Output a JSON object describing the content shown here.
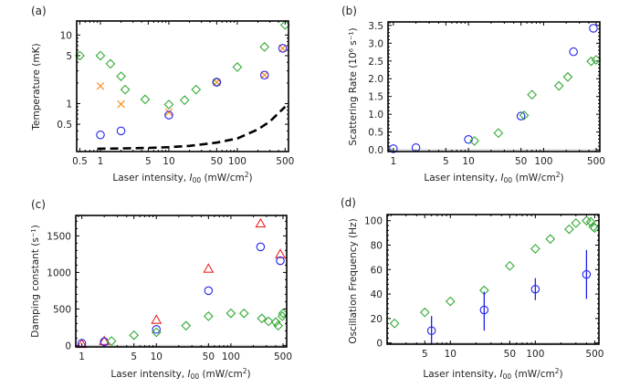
{
  "chart_data": [
    {
      "panel": "(a)",
      "type": "scatter",
      "xscale": "log",
      "yscale": "log",
      "xlabel": "Laser intensity, I00 (mW/cm2)",
      "ylabel": "Temperature (mK)",
      "xlim": [
        0.45,
        560
      ],
      "ylim": [
        0.2,
        16
      ],
      "xticks": [
        0.5,
        1,
        5,
        10,
        50,
        100,
        500
      ],
      "xtick_labels": [
        "0.5",
        "1",
        "5",
        "10",
        "50",
        "100",
        "500"
      ],
      "yticks": [
        0.5,
        1,
        5,
        10
      ],
      "ytick_labels": [
        "0.5",
        "1",
        "5",
        "10"
      ],
      "series": [
        {
          "name": "green diamonds",
          "marker": "diamond",
          "color": "#33aa33",
          "x": [
            0.5,
            1,
            1.4,
            2,
            2.3,
            4.5,
            10,
            17,
            25,
            50,
            100,
            250,
            500
          ],
          "y": [
            5.0,
            5.0,
            3.8,
            2.5,
            1.6,
            1.15,
            0.97,
            1.12,
            1.6,
            2.05,
            3.4,
            6.7,
            14.0
          ]
        },
        {
          "name": "orange crosses",
          "marker": "x",
          "color": "#ff8c1a",
          "x": [
            1,
            2,
            10,
            50,
            250,
            460
          ],
          "y": [
            1.8,
            0.98,
            0.75,
            2.05,
            2.6,
            6.4
          ]
        },
        {
          "name": "blue circles",
          "marker": "circle",
          "color": "#2222ee",
          "x": [
            1,
            2,
            10,
            50,
            250,
            460
          ],
          "y": [
            0.35,
            0.4,
            0.68,
            2.05,
            2.6,
            6.4
          ]
        },
        {
          "name": "theory (dashed)",
          "marker": "line-dashed",
          "color": "#000000",
          "x": [
            0.9,
            2,
            5,
            10,
            20,
            50,
            100,
            200,
            300,
            500
          ],
          "y": [
            0.22,
            0.222,
            0.226,
            0.232,
            0.242,
            0.27,
            0.31,
            0.42,
            0.55,
            0.9
          ]
        }
      ]
    },
    {
      "panel": "(b)",
      "type": "scatter",
      "xscale": "log",
      "yscale": "linear",
      "xlabel": "Laser intensity, I00 (mW/cm2)",
      "ylabel": "Scattering Rate (10^6 s^-1)",
      "xlim": [
        0.85,
        560
      ],
      "ylim": [
        -0.05,
        3.6
      ],
      "xticks": [
        1,
        5,
        10,
        50,
        100,
        500
      ],
      "xtick_labels": [
        "1",
        "5",
        "10",
        "50",
        "100",
        "500"
      ],
      "yticks": [
        0.0,
        0.5,
        1.0,
        1.5,
        2.0,
        2.5,
        3.0,
        3.5
      ],
      "ytick_labels": [
        "0.0",
        "0.5",
        "1.0",
        "1.5",
        "2.0",
        "2.5",
        "3.0",
        "3.5"
      ],
      "series": [
        {
          "name": "blue circles",
          "marker": "circle",
          "color": "#2222ee",
          "x": [
            1,
            2,
            10,
            50,
            250,
            460
          ],
          "y": [
            0.03,
            0.06,
            0.29,
            0.95,
            2.76,
            3.42
          ]
        },
        {
          "name": "green diamonds",
          "marker": "diamond",
          "color": "#33aa33",
          "x": [
            12,
            25,
            55,
            70,
            160,
            210,
            430,
            500
          ],
          "y": [
            0.25,
            0.47,
            0.97,
            1.55,
            1.8,
            2.05,
            2.49,
            2.53
          ]
        }
      ]
    },
    {
      "panel": "(c)",
      "type": "scatter",
      "xscale": "log",
      "yscale": "linear",
      "xlabel": "Laser intensity, I00 (mW/cm2)",
      "ylabel": "Damping constant (s^-1)",
      "xlim": [
        0.83,
        560
      ],
      "ylim": [
        -20,
        1780
      ],
      "xticks": [
        1,
        5,
        10,
        50,
        100,
        500
      ],
      "xtick_labels": [
        "1",
        "5",
        "10",
        "50",
        "100",
        "500"
      ],
      "yticks": [
        0,
        500,
        1000,
        1500
      ],
      "ytick_labels": [
        "0",
        "500",
        "1000",
        "1500"
      ],
      "series": [
        {
          "name": "red triangles",
          "marker": "triangle",
          "color": "#ee2222",
          "x": [
            1,
            2,
            10,
            50,
            250,
            460
          ],
          "y": [
            20,
            60,
            350,
            1050,
            1670,
            1250
          ]
        },
        {
          "name": "blue circles",
          "marker": "circle",
          "color": "#2222ee",
          "x": [
            1,
            2,
            10,
            50,
            250,
            460
          ],
          "y": [
            30,
            50,
            220,
            750,
            1350,
            1160
          ]
        },
        {
          "name": "green diamonds",
          "marker": "diamond",
          "color": "#33aa33",
          "x": [
            2.5,
            5,
            10,
            25,
            50,
            100,
            150,
            260,
            320,
            400,
            430,
            490,
            500
          ],
          "y": [
            60,
            140,
            180,
            270,
            400,
            440,
            440,
            370,
            330,
            320,
            270,
            400,
            440
          ]
        }
      ]
    },
    {
      "panel": "(d)",
      "type": "scatter",
      "xscale": "log",
      "yscale": "linear",
      "xlabel": "Laser intensity, I00 (mW/cm2)",
      "ylabel": "Oscillation Frequency (Hz)",
      "xlim": [
        1.8,
        560
      ],
      "ylim": [
        -1,
        105
      ],
      "xticks": [
        5,
        10,
        50,
        100,
        500
      ],
      "xtick_labels": [
        "5",
        "10",
        "50",
        "100",
        "500"
      ],
      "yticks": [
        0,
        20,
        40,
        60,
        80,
        100
      ],
      "ytick_labels": [
        "0",
        "20",
        "40",
        "60",
        "80",
        "100"
      ],
      "series": [
        {
          "name": "green diamonds",
          "marker": "diamond",
          "color": "#33aa33",
          "x": [
            2.2,
            5,
            10,
            25,
            50,
            100,
            150,
            250,
            300,
            400,
            450,
            480,
            500
          ],
          "y": [
            16,
            25,
            34,
            43,
            63,
            77,
            85,
            93,
            98,
            100,
            99,
            95,
            94
          ]
        },
        {
          "name": "blue circles (with error bars)",
          "marker": "circle",
          "color": "#2222ee",
          "x": [
            6,
            25,
            100,
            400
          ],
          "y": [
            10,
            27,
            44,
            56
          ],
          "err_low": [
            0,
            10,
            35,
            36
          ],
          "err_high": [
            22,
            42,
            53,
            76
          ]
        }
      ]
    }
  ],
  "panels": [
    {
      "label": "(a)",
      "xlabel_main": "Laser intensity, ",
      "xlabel_sym": "I",
      "xlabel_sub": "00",
      "xlabel_units": " (mW/cm",
      "xlabel_sup": "2",
      "xlabel_end": ")",
      "ylabel": "Temperature (mK)"
    },
    {
      "label": "(b)",
      "xlabel_main": "Laser intensity, ",
      "xlabel_sym": "I",
      "xlabel_sub": "00",
      "xlabel_units": " (mW/cm",
      "xlabel_sup": "2",
      "xlabel_end": ")",
      "ylabel": "Scattering Rate (10⁶ s⁻¹)"
    },
    {
      "label": "(c)",
      "xlabel_main": "Laser intensity, ",
      "xlabel_sym": "I",
      "xlabel_sub": "00",
      "xlabel_units": " (mW/cm",
      "xlabel_sup": "2",
      "xlabel_end": ")",
      "ylabel": "Damping constant (s⁻¹)"
    },
    {
      "label": "(d)",
      "xlabel_main": "Laser intensity, ",
      "xlabel_sym": "I",
      "xlabel_sub": "00",
      "xlabel_units": " (mW/cm",
      "xlabel_sup": "2",
      "xlabel_end": ")",
      "ylabel": "Oscillation Frequency (Hz)"
    }
  ]
}
